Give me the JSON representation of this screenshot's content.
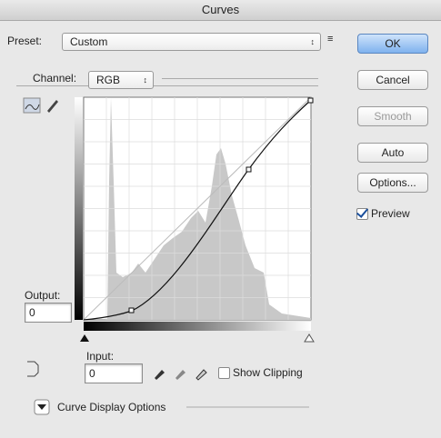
{
  "window": {
    "title": "Curves"
  },
  "preset": {
    "label": "Preset:",
    "value": "Custom"
  },
  "channel": {
    "label": "Channel:",
    "value": "RGB"
  },
  "buttons": [
    "OK",
    "Cancel",
    "Smooth",
    "Auto",
    "Options..."
  ],
  "preview": {
    "label": "Preview",
    "checked": true
  },
  "output": {
    "label": "Output:",
    "value": "0"
  },
  "input": {
    "label": "Input:",
    "value": "0"
  },
  "show_clipping": {
    "label": "Show Clipping",
    "checked": false
  },
  "curve_display_options": "Curve Display Options"
}
